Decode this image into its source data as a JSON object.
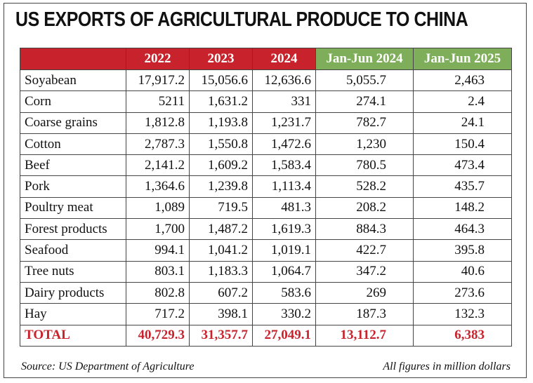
{
  "chart_data": {
    "type": "table",
    "title": "US EXPORTS OF AGRICULTURAL PRODUCE TO CHINA",
    "columns": [
      "2022",
      "2023",
      "2024",
      "Jan-Jun 2024",
      "Jan-Jun 2025"
    ],
    "rows": [
      {
        "label": "Soyabean",
        "values": [
          "17,917.2",
          "15,056.6",
          "12,636.6",
          "5,055.7",
          "2,463"
        ]
      },
      {
        "label": "Corn",
        "values": [
          "5211",
          "1,631.2",
          "331",
          "274.1",
          "2.4"
        ]
      },
      {
        "label": "Coarse grains",
        "values": [
          "1,812.8",
          "1,193.8",
          "1,231.7",
          "782.7",
          "24.1"
        ]
      },
      {
        "label": "Cotton",
        "values": [
          "2,787.3",
          "1,550.8",
          "1,472.6",
          "1,230",
          "150.4"
        ]
      },
      {
        "label": "Beef",
        "values": [
          "2,141.2",
          "1,609.2",
          "1,583.4",
          "780.5",
          "473.4"
        ]
      },
      {
        "label": "Pork",
        "values": [
          "1,364.6",
          "1,239.8",
          "1,113.4",
          "528.2",
          "435.7"
        ]
      },
      {
        "label": "Poultry meat",
        "values": [
          "1,089",
          "719.5",
          "481.3",
          "208.2",
          "148.2"
        ]
      },
      {
        "label": "Forest products",
        "values": [
          "1,700",
          "1,487.2",
          "1,619.3",
          "884.3",
          "464.3"
        ]
      },
      {
        "label": "Seafood",
        "values": [
          "994.1",
          "1,041.2",
          "1,019.1",
          "422.7",
          "395.8"
        ]
      },
      {
        "label": "Tree nuts",
        "values": [
          "803.1",
          "1,183.3",
          "1,064.7",
          "347.2",
          "40.6"
        ]
      },
      {
        "label": "Dairy products",
        "values": [
          "802.8",
          "607.2",
          "583.6",
          "269",
          "273.6"
        ]
      },
      {
        "label": "Hay",
        "values": [
          "717.2",
          "398.1",
          "330.2",
          "187.3",
          "132.3"
        ]
      }
    ],
    "total": {
      "label": "TOTAL",
      "values": [
        "40,729.3",
        "31,357.7",
        "27,049.1",
        "13,112.7",
        "6,383"
      ]
    },
    "source": "Source: US Department of Agriculture",
    "unit_note": "All figures in million dollars"
  },
  "colors": {
    "header_red": "#c8232c",
    "header_green": "#7fae5a",
    "total_text": "#c8232c"
  }
}
